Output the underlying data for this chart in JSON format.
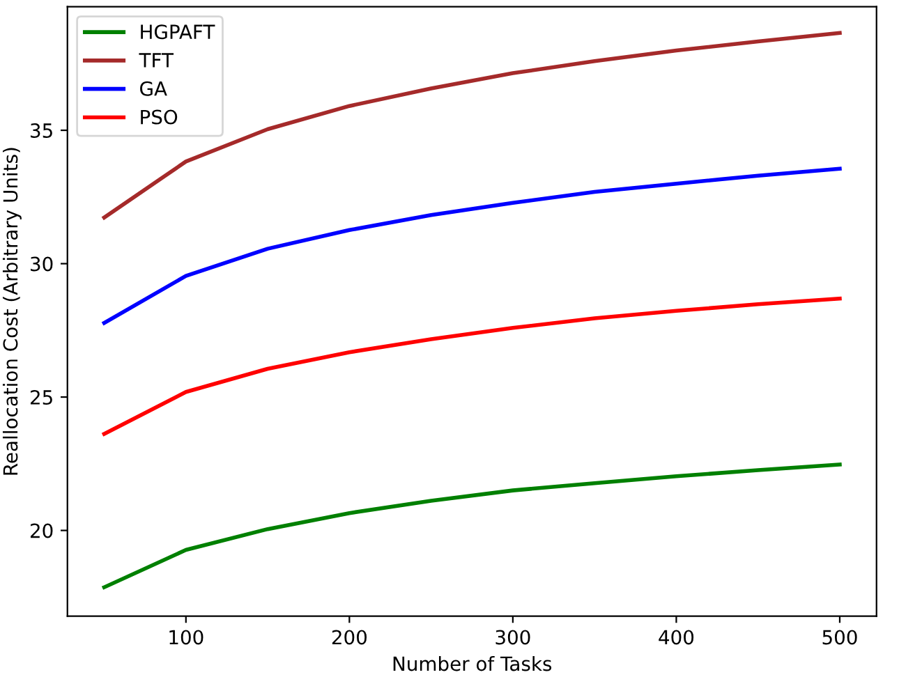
{
  "chart_data": {
    "type": "line",
    "xlabel": "Number of Tasks",
    "ylabel": "Reallocation Cost (Arbitrary Units)",
    "x": [
      50,
      100,
      150,
      200,
      250,
      300,
      350,
      400,
      450,
      500
    ],
    "series": [
      {
        "name": "HGPAFT",
        "color": "#008000",
        "values": [
          17.87,
          19.27,
          20.05,
          20.65,
          21.11,
          21.5,
          21.77,
          22.03,
          22.26,
          22.47
        ]
      },
      {
        "name": "TFT",
        "color": "#a52a2a",
        "values": [
          31.73,
          33.83,
          35.04,
          35.91,
          36.57,
          37.14,
          37.59,
          37.99,
          38.33,
          38.65
        ]
      },
      {
        "name": "GA",
        "color": "#0000ff",
        "values": [
          27.78,
          29.54,
          30.56,
          31.26,
          31.82,
          32.28,
          32.69,
          33.0,
          33.3,
          33.56
        ]
      },
      {
        "name": "PSO",
        "color": "#ff0000",
        "values": [
          23.62,
          25.19,
          26.06,
          26.68,
          27.17,
          27.59,
          27.95,
          28.23,
          28.48,
          28.69
        ]
      }
    ],
    "xlim": [
      27.5,
      522.5
    ],
    "ylim": [
      16.79,
      39.63
    ],
    "xticks": [
      100,
      200,
      300,
      400,
      500
    ],
    "yticks": [
      20,
      25,
      30,
      35
    ],
    "legend": "top left",
    "grid": false,
    "marker": "none",
    "line_style": "solid"
  }
}
